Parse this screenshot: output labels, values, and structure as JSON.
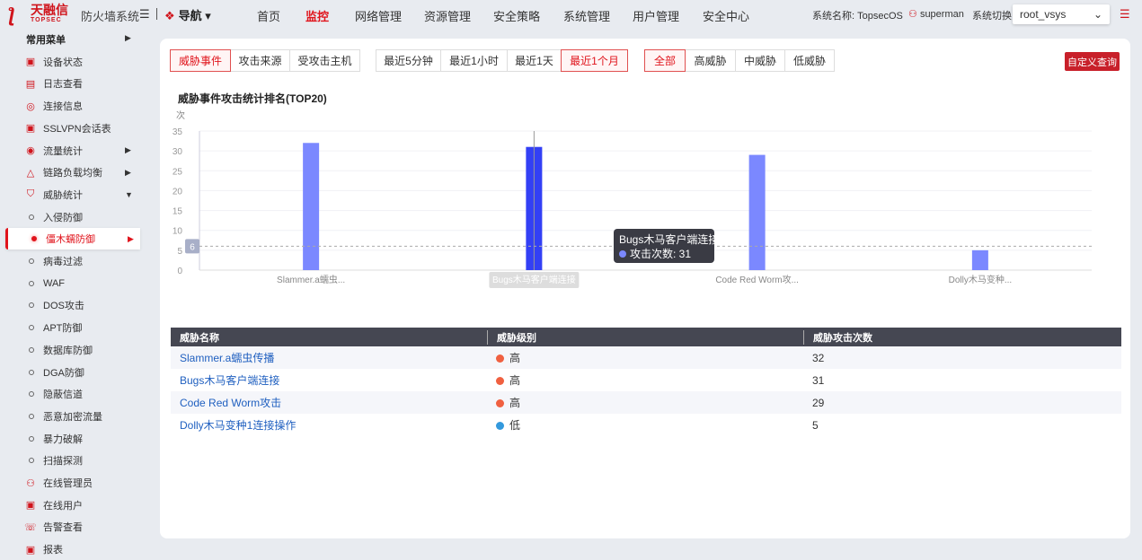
{
  "header": {
    "logo_text": "天融信",
    "logo_sub": "TOPSEC",
    "system": "防火墙系统",
    "nav_label": "导航",
    "menus": [
      "首页",
      "监控",
      "网络管理",
      "资源管理",
      "安全策略",
      "系统管理",
      "用户管理",
      "安全中心"
    ],
    "active_menu": "监控",
    "system_name": "系统名称: TopsecOS",
    "user": "superman",
    "switch_label": "系统切换",
    "vsys": "root_vsys"
  },
  "sidebar": {
    "heading": "常用菜单",
    "items": [
      "设备状态",
      "日志查看",
      "连接信息",
      "SSLVPN会话表",
      "流量统计",
      "链路负载均衡",
      "威胁统计"
    ],
    "sub": [
      "入侵防御",
      "僵木蠕防御",
      "病毒过滤",
      "WAF",
      "DOS攻击",
      "APT防御",
      "数据库防御",
      "DGA防御",
      "隐蔽信道",
      "恶意加密流量",
      "暴力破解",
      "扫描探测"
    ],
    "bottom": [
      "在线管理员",
      "在线用户",
      "告警查看",
      "报表"
    ],
    "active": "僵木蠕防御"
  },
  "filters": {
    "type": [
      "威胁事件",
      "攻击来源",
      "受攻击主机"
    ],
    "time": [
      "最近5分钟",
      "最近1小时",
      "最近1天",
      "最近1个月"
    ],
    "level": [
      "全部",
      "高威胁",
      "中威胁",
      "低威胁"
    ],
    "active": [
      "威胁事件",
      "最近1个月",
      "全部"
    ],
    "custom": "自定义查询"
  },
  "chart_data": {
    "type": "bar",
    "title": "威胁事件攻击统计排名(TOP20)",
    "ylabel": "次",
    "categories": [
      "Slammer.a蠕虫...",
      "Bugs木马客户端连接",
      "Code Red Worm攻...",
      "Dolly木马变种..."
    ],
    "values": [
      32,
      31,
      29,
      5
    ],
    "ylim": [
      0,
      35
    ],
    "yticks": [
      0,
      5,
      10,
      15,
      20,
      25,
      30,
      35
    ],
    "avg_line": 6,
    "color": "#7b88ff",
    "highlight_color": "#3340f5",
    "grid": true,
    "tooltip": {
      "title": "Bugs木马客户端连接",
      "label": "攻击次数: 31"
    }
  },
  "table": {
    "headers": [
      "威胁名称",
      "威胁级别",
      "威胁攻击次数"
    ],
    "rows": [
      {
        "name": "Slammer.a蠕虫传播",
        "level": "高",
        "color": "#f06040",
        "count": "32"
      },
      {
        "name": "Bugs木马客户端连接",
        "level": "高",
        "color": "#f06040",
        "count": "31"
      },
      {
        "name": "Code Red Worm攻击",
        "level": "高",
        "color": "#f06040",
        "count": "29"
      },
      {
        "name": "Dolly木马变种1连接操作",
        "level": "低",
        "color": "#3399dd",
        "count": "5"
      }
    ]
  }
}
